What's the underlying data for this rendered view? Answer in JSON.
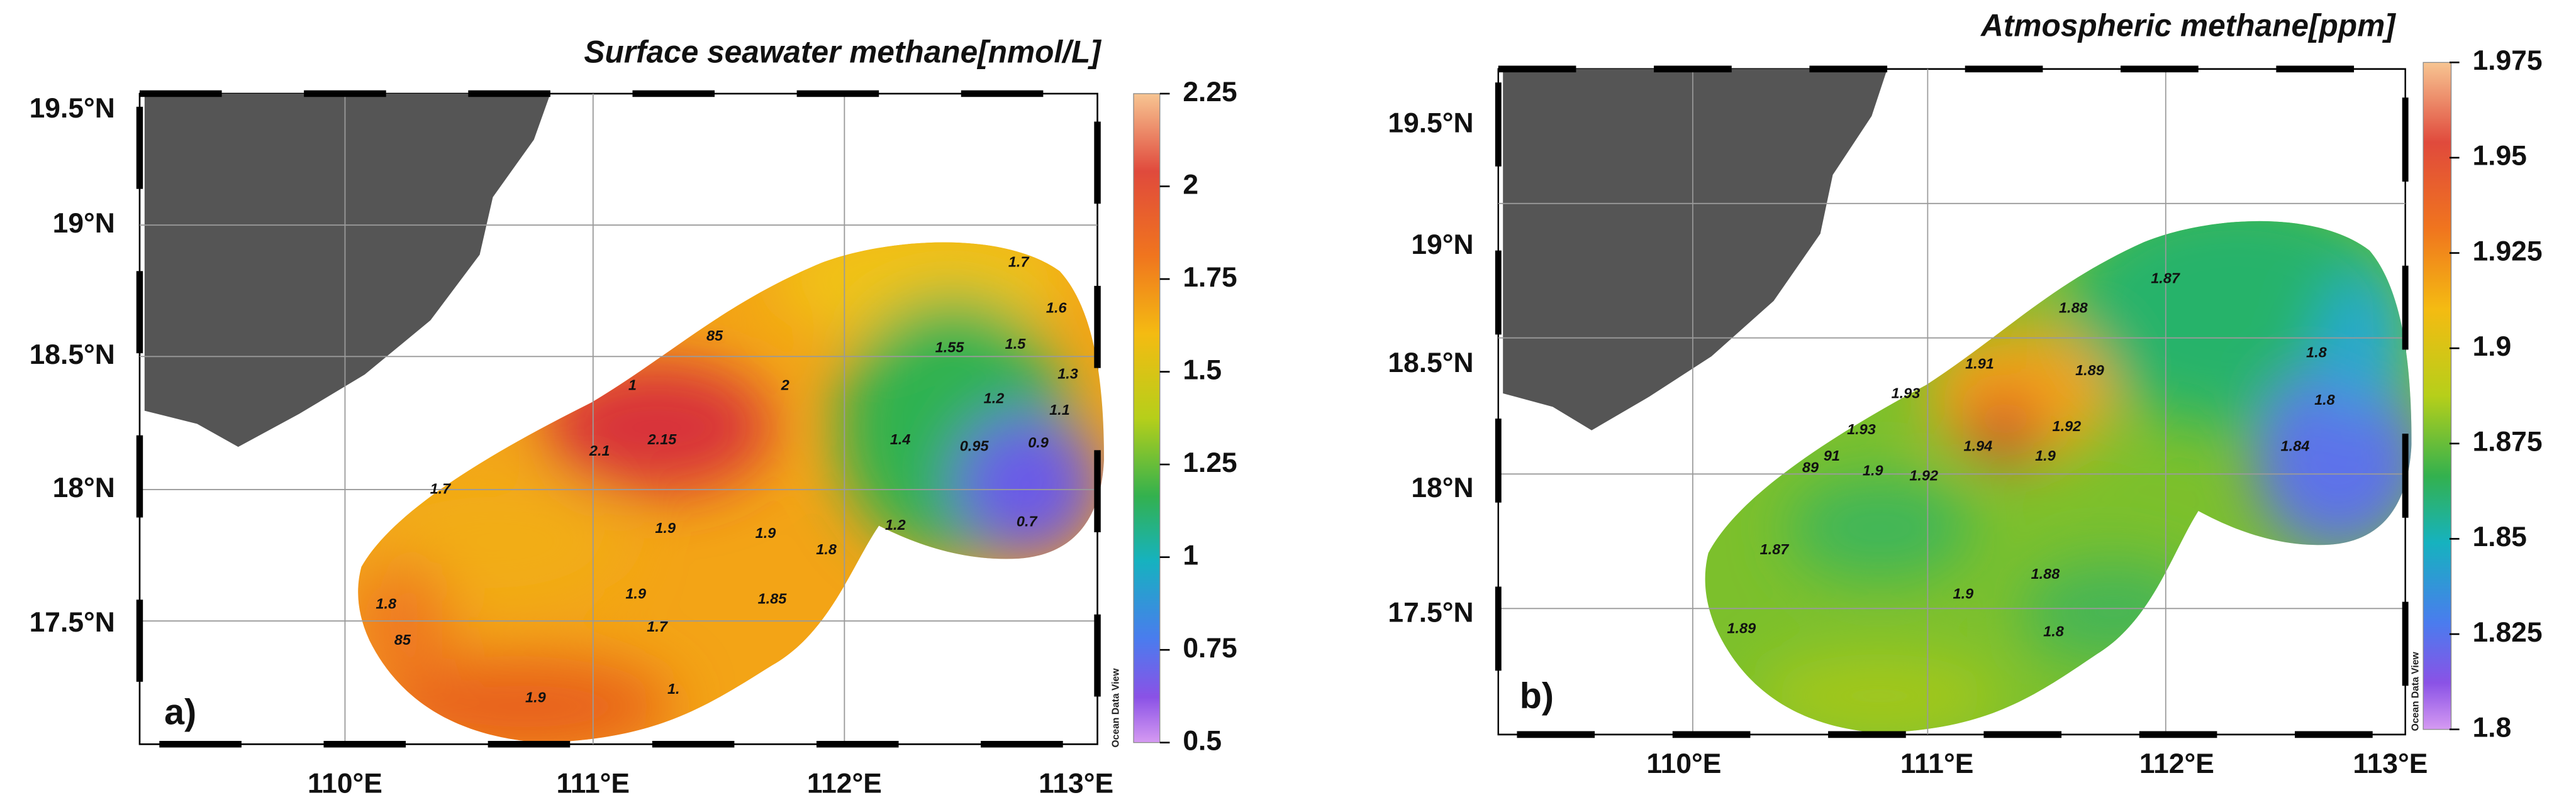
{
  "panels": [
    {
      "title": "Surface seawater methane[nmol/L]",
      "panel_label": "a)",
      "latitude_labels": [
        "19.5°N",
        "19°N",
        "18.5°N",
        "18°N",
        "17.5°N"
      ],
      "longitude_labels": [
        "110°E",
        "111°E",
        "112°E",
        "113°E"
      ],
      "colorbar_ticks": [
        2.25,
        2,
        1.75,
        1.5,
        1.25,
        1,
        0.75,
        0.5
      ],
      "contour_labels": [
        "1.7",
        "1.6",
        "1.55",
        "1.5",
        "1.3",
        "1.2",
        "1.1",
        "0.95",
        "0.9",
        "1.4",
        "0.7",
        "1.2",
        "85",
        "1",
        "2",
        "2.15",
        "2.1",
        "1.8",
        "1.7",
        "1.9",
        "1.9",
        "1.8",
        "1.9",
        "1.85",
        "1.7",
        "85",
        "1.9",
        "1."
      ],
      "watermark": "Ocean Data View"
    },
    {
      "title": "Atmospheric methane[ppm]",
      "panel_label": "b)",
      "latitude_labels": [
        "19.5°N",
        "19°N",
        "18.5°N",
        "18°N",
        "17.5°N"
      ],
      "longitude_labels": [
        "110°E",
        "111°E",
        "112°E",
        "113°E"
      ],
      "colorbar_ticks": [
        1.975,
        1.95,
        1.925,
        1.9,
        1.875,
        1.85,
        1.825,
        1.8
      ],
      "contour_labels": [
        "1.87",
        "1.88",
        "1.91",
        "1.89",
        "1.8",
        "1.93",
        "1.92",
        "1.8",
        "1.93",
        "1.94",
        "1.84",
        "1.9",
        "91",
        "1.9",
        "1.92",
        "89",
        "1.87",
        "1.88",
        "1.9",
        "1.89",
        "1.8"
      ],
      "watermark": "Ocean Data View"
    }
  ]
}
